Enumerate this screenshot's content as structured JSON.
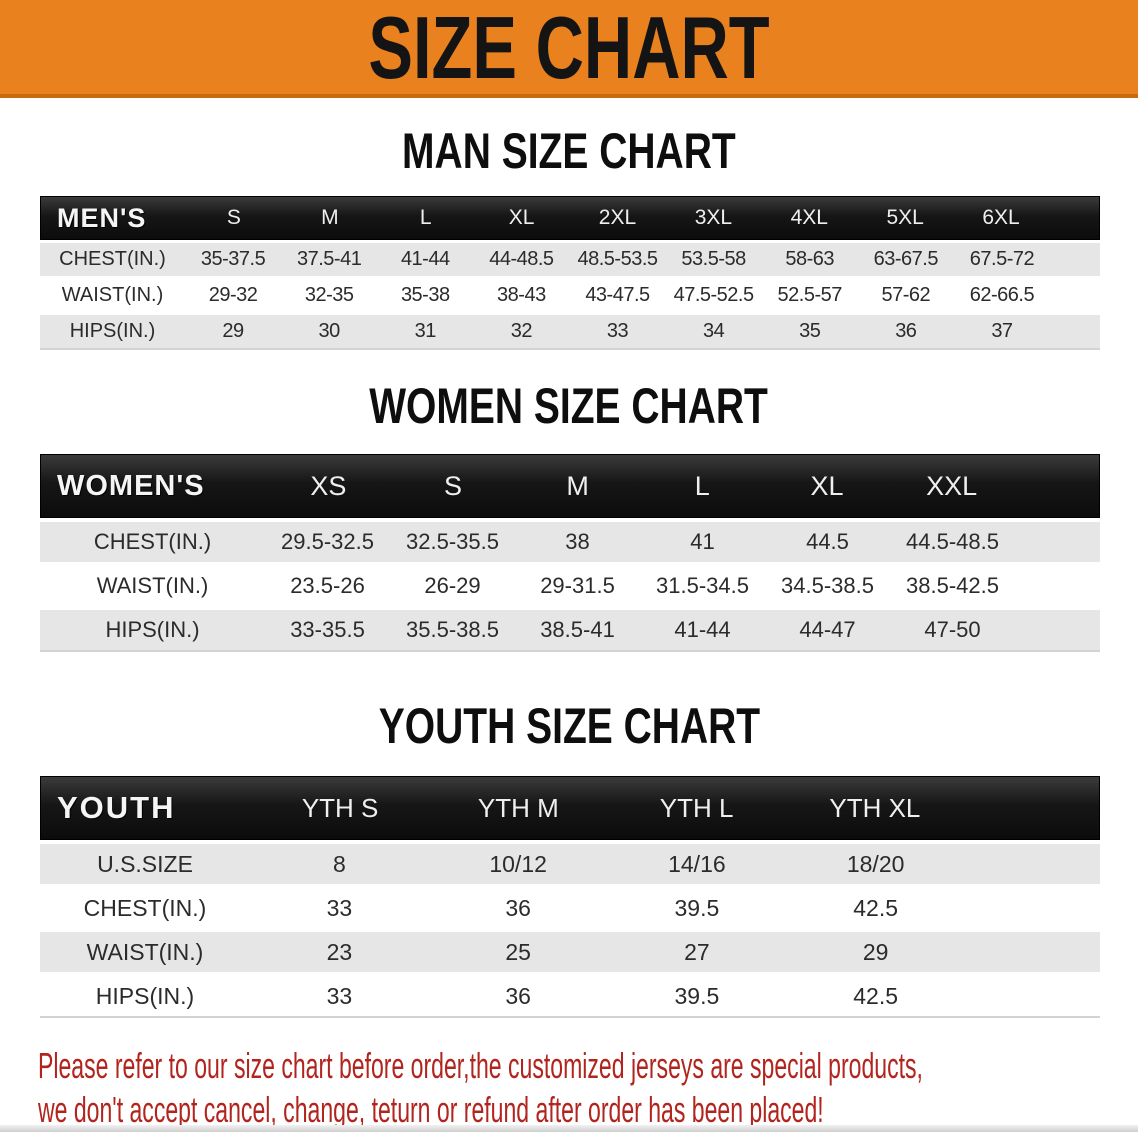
{
  "banner": {
    "title": "SIZE CHART"
  },
  "colors": {
    "banner_orange": "#E8811E",
    "banner_edge": "#C96A10",
    "table_header_black": "#161616",
    "row_stripe_gray": "#E6E6E6",
    "disclaimer_red": "#B2241E"
  },
  "tables": {
    "men": {
      "title": "MAN SIZE CHART",
      "header_label": "MEN'S",
      "sizes": [
        "S",
        "M",
        "L",
        "XL",
        "2XL",
        "3XL",
        "4XL",
        "5XL",
        "6XL"
      ],
      "rows": [
        {
          "label": "CHEST(IN.)",
          "values": [
            "35-37.5",
            "37.5-41",
            "41-44",
            "44-48.5",
            "48.5-53.5",
            "53.5-58",
            "58-63",
            "63-67.5",
            "67.5-72"
          ]
        },
        {
          "label": "WAIST(IN.)",
          "values": [
            "29-32",
            "32-35",
            "35-38",
            "38-43",
            "43-47.5",
            "47.5-52.5",
            "52.5-57",
            "57-62",
            "62-66.5"
          ]
        },
        {
          "label": "HIPS(IN.)",
          "values": [
            "29",
            "30",
            "31",
            "32",
            "33",
            "34",
            "35",
            "36",
            "37"
          ]
        }
      ]
    },
    "women": {
      "title": "WOMEN SIZE CHART",
      "header_label": "WOMEN'S",
      "sizes": [
        "XS",
        "S",
        "M",
        "L",
        "XL",
        "XXL"
      ],
      "rows": [
        {
          "label": "CHEST(IN.)",
          "values": [
            "29.5-32.5",
            "32.5-35.5",
            "38",
            "41",
            "44.5",
            "44.5-48.5"
          ]
        },
        {
          "label": "WAIST(IN.)",
          "values": [
            "23.5-26",
            "26-29",
            "29-31.5",
            "31.5-34.5",
            "34.5-38.5",
            "38.5-42.5"
          ]
        },
        {
          "label": "HIPS(IN.)",
          "values": [
            "33-35.5",
            "35.5-38.5",
            "38.5-41",
            "41-44",
            "44-47",
            "47-50"
          ]
        }
      ]
    },
    "youth": {
      "title": "YOUTH SIZE CHART",
      "header_label": "YOUTH",
      "sizes": [
        "YTH S",
        "YTH M",
        "YTH L",
        "YTH XL"
      ],
      "rows": [
        {
          "label": "U.S.SIZE",
          "values": [
            "8",
            "10/12",
            "14/16",
            "18/20"
          ]
        },
        {
          "label": "CHEST(IN.)",
          "values": [
            "33",
            "36",
            "39.5",
            "42.5"
          ]
        },
        {
          "label": "WAIST(IN.)",
          "values": [
            "23",
            "25",
            "27",
            "29"
          ]
        },
        {
          "label": "HIPS(IN.)",
          "values": [
            "33",
            "36",
            "39.5",
            "42.5"
          ]
        }
      ]
    }
  },
  "disclaimer": {
    "line1": "Please refer to our size chart before order,the customized jerseys are special products,",
    "line2": "we don't accept cancel, change, teturn or refund after order has been placed!"
  }
}
